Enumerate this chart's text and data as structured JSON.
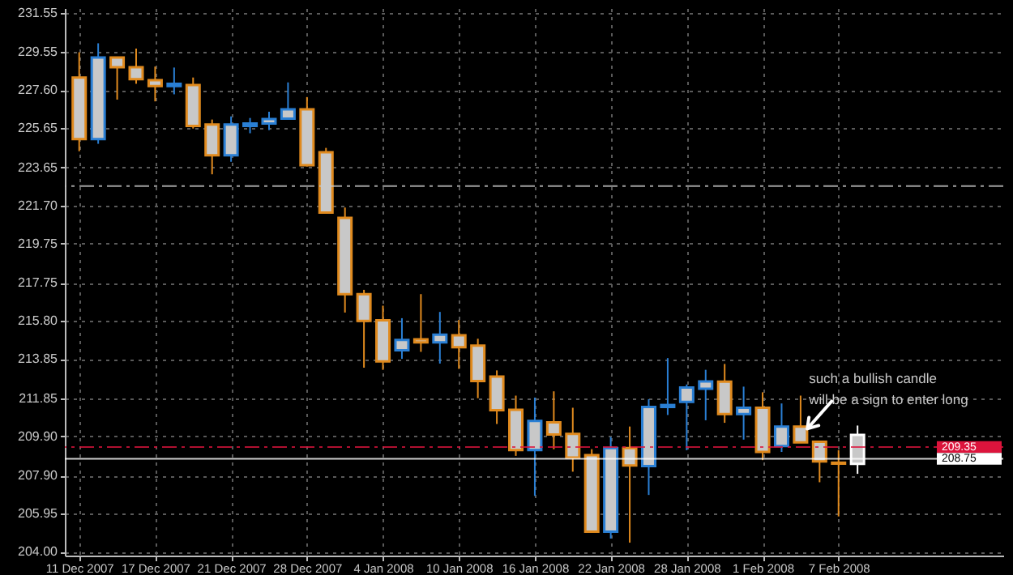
{
  "chart_data": {
    "type": "candlestick",
    "categories": [
      "11 Dec 2007",
      null,
      null,
      null,
      "17 Dec 2007",
      null,
      null,
      null,
      "21 Dec 2007",
      null,
      null,
      null,
      "28 Dec 2007",
      null,
      null,
      null,
      "4 Jan 2008",
      null,
      null,
      null,
      "10 Jan 2008",
      null,
      null,
      null,
      "16 Jan 2008",
      null,
      null,
      null,
      "22 Jan 2008",
      null,
      null,
      null,
      "28 Jan 2008",
      null,
      null,
      null,
      "1 Feb 2008",
      null,
      null,
      null,
      "7 Feb 2008",
      null
    ],
    "ohlc": [
      [
        228.25,
        229.54,
        224.48,
        225.1
      ],
      [
        225.1,
        230.0,
        224.86,
        229.27
      ],
      [
        229.27,
        229.3,
        227.12,
        228.78
      ],
      [
        228.78,
        229.73,
        227.93,
        228.17
      ],
      [
        228.11,
        228.81,
        227.03,
        227.81
      ],
      [
        227.81,
        228.76,
        227.39,
        227.93
      ],
      [
        227.87,
        228.25,
        225.64,
        225.77
      ],
      [
        225.85,
        226.1,
        223.3,
        224.27
      ],
      [
        224.27,
        226.26,
        223.94,
        225.85
      ],
      [
        225.77,
        226.18,
        225.4,
        225.9
      ],
      [
        225.9,
        226.5,
        225.56,
        226.13
      ],
      [
        226.15,
        228.0,
        226.15,
        226.62
      ],
      [
        226.62,
        227.25,
        223.7,
        223.76
      ],
      [
        224.43,
        224.65,
        221.34,
        221.34
      ],
      [
        221.07,
        221.6,
        216.23,
        217.17
      ],
      [
        217.17,
        217.39,
        213.41,
        215.8
      ],
      [
        215.83,
        216.58,
        213.3,
        213.73
      ],
      [
        214.3,
        215.94,
        213.86,
        214.83
      ],
      [
        214.86,
        217.17,
        214.22,
        214.7
      ],
      [
        214.7,
        216.26,
        213.62,
        215.1
      ],
      [
        215.07,
        215.85,
        213.35,
        214.46
      ],
      [
        214.54,
        214.89,
        211.85,
        212.73
      ],
      [
        212.95,
        213.27,
        210.53,
        211.23
      ],
      [
        211.26,
        211.98,
        208.9,
        209.19
      ],
      [
        209.19,
        211.88,
        206.85,
        210.69
      ],
      [
        210.61,
        212.2,
        209.24,
        209.99
      ],
      [
        210.02,
        211.36,
        208.09,
        208.81
      ],
      [
        208.94,
        209.24,
        205.02,
        205.02
      ],
      [
        205.02,
        209.86,
        204.67,
        209.3
      ],
      [
        209.3,
        210.4,
        204.46,
        208.41
      ],
      [
        208.38,
        211.8,
        206.9,
        211.4
      ],
      [
        211.4,
        213.9,
        210.99,
        211.5
      ],
      [
        211.66,
        212.55,
        209.19,
        212.39
      ],
      [
        212.33,
        213.3,
        210.72,
        212.71
      ],
      [
        212.69,
        213.6,
        210.59,
        211.04
      ],
      [
        211.04,
        212.44,
        209.73,
        211.36
      ],
      [
        211.36,
        212.15,
        208.68,
        209.1
      ],
      [
        209.4,
        211.58,
        209.1,
        210.4
      ],
      [
        210.4,
        211.98,
        209.59,
        209.59
      ],
      [
        209.62,
        209.62,
        207.55,
        208.62
      ],
      [
        208.55,
        209.19,
        205.8,
        208.5
      ],
      [
        208.49,
        210.45,
        207.98,
        209.97
      ]
    ],
    "colors": [
      "#e08a1e",
      "#2a7fd4",
      "#e08a1e",
      "#e08a1e",
      "#e08a1e",
      "#2a7fd4",
      "#e08a1e",
      "#e08a1e",
      "#2a7fd4",
      "#2a7fd4",
      "#2a7fd4",
      "#2a7fd4",
      "#e08a1e",
      "#e08a1e",
      "#e08a1e",
      "#e08a1e",
      "#e08a1e",
      "#2a7fd4",
      "#e08a1e",
      "#2a7fd4",
      "#e08a1e",
      "#e08a1e",
      "#e08a1e",
      "#e08a1e",
      "#2a7fd4",
      "#e08a1e",
      "#e08a1e",
      "#e08a1e",
      "#2a7fd4",
      "#e08a1e",
      "#2a7fd4",
      "#2a7fd4",
      "#2a7fd4",
      "#2a7fd4",
      "#e08a1e",
      "#2a7fd4",
      "#e08a1e",
      "#2a7fd4",
      "#e08a1e",
      "#e08a1e",
      "#e08a1e",
      "#ffffff"
    ],
    "ylim": [
      203.8,
      231.8
    ],
    "yticks": [
      {
        "value": 204,
        "label": "204.00"
      },
      {
        "value": 205.95,
        "label": "205.95"
      },
      {
        "value": 207.9,
        "label": "207.90"
      },
      {
        "value": 209.9,
        "label": "209.90"
      },
      {
        "value": 211.85,
        "label": "211.85"
      },
      {
        "value": 213.85,
        "label": "213.85"
      },
      {
        "value": 215.8,
        "label": "215.80"
      },
      {
        "value": 217.75,
        "label": "217.75"
      },
      {
        "value": 219.75,
        "label": "219.75"
      },
      {
        "value": 221.7,
        "label": "221.70"
      },
      {
        "value": 223.65,
        "label": "223.65"
      },
      {
        "value": 225.65,
        "label": "225.65"
      },
      {
        "value": 227.6,
        "label": "227.60"
      },
      {
        "value": 229.55,
        "label": "229.55"
      },
      {
        "value": 231.55,
        "label": "231.55"
      }
    ],
    "grid": true,
    "ref_lines": [
      {
        "axis": "y",
        "value": 222.7,
        "color": "#c8c8c8",
        "line_style": "dashed"
      },
      {
        "axis": "y",
        "value": 209.35,
        "label": "209.35",
        "color": "#dc143c",
        "line_style": "dashed"
      },
      {
        "axis": "y",
        "value": 208.75,
        "label": "208.75",
        "color": "#ffffff",
        "line_style": "solid"
      }
    ],
    "annotations": [
      "such a bullish candle\nwill be a sign to enter long"
    ]
  }
}
